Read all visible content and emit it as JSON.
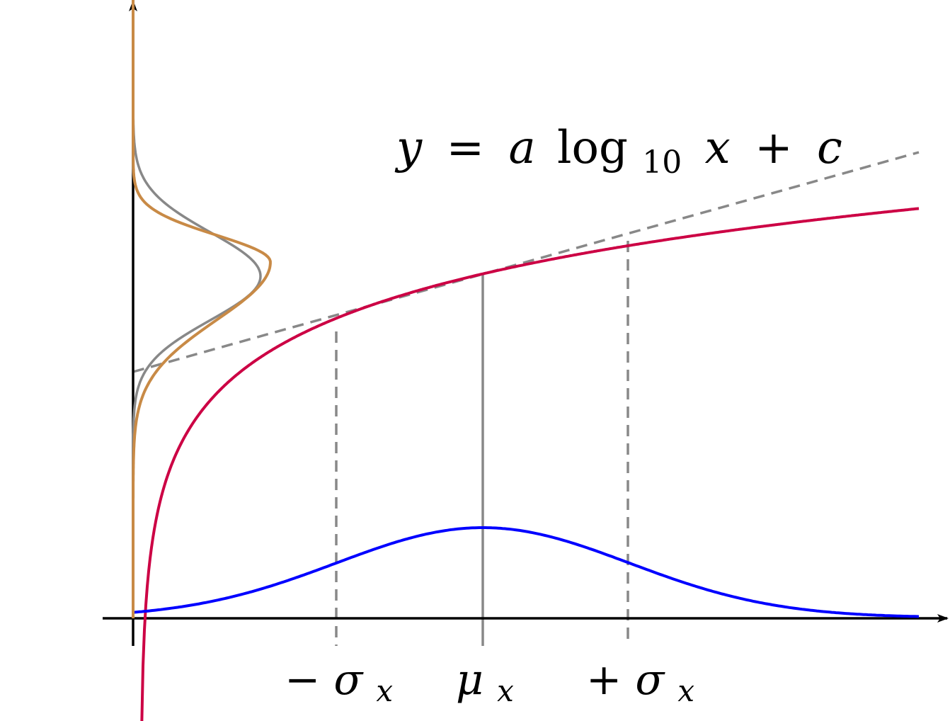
{
  "equation": {
    "y": "y",
    "eq": "=",
    "a": "a",
    "log": "log",
    "base": "10",
    "x": "x",
    "plus": "+",
    "c": "c"
  },
  "ticks": {
    "minus_sigma": {
      "sign": "−",
      "sym": "σ",
      "sub": "x"
    },
    "mu": {
      "sym": "μ",
      "sub": "x"
    },
    "plus_sigma": {
      "sign": "+",
      "sym": "σ",
      "sub": "x"
    }
  },
  "colors": {
    "log_curve": "#cc0044",
    "gaussian_x": "#0000ff",
    "gaussian_y_exact": "#888888",
    "gaussian_y_log": "#c88a46",
    "tangent": "#888888",
    "axes": "#000000"
  }
}
